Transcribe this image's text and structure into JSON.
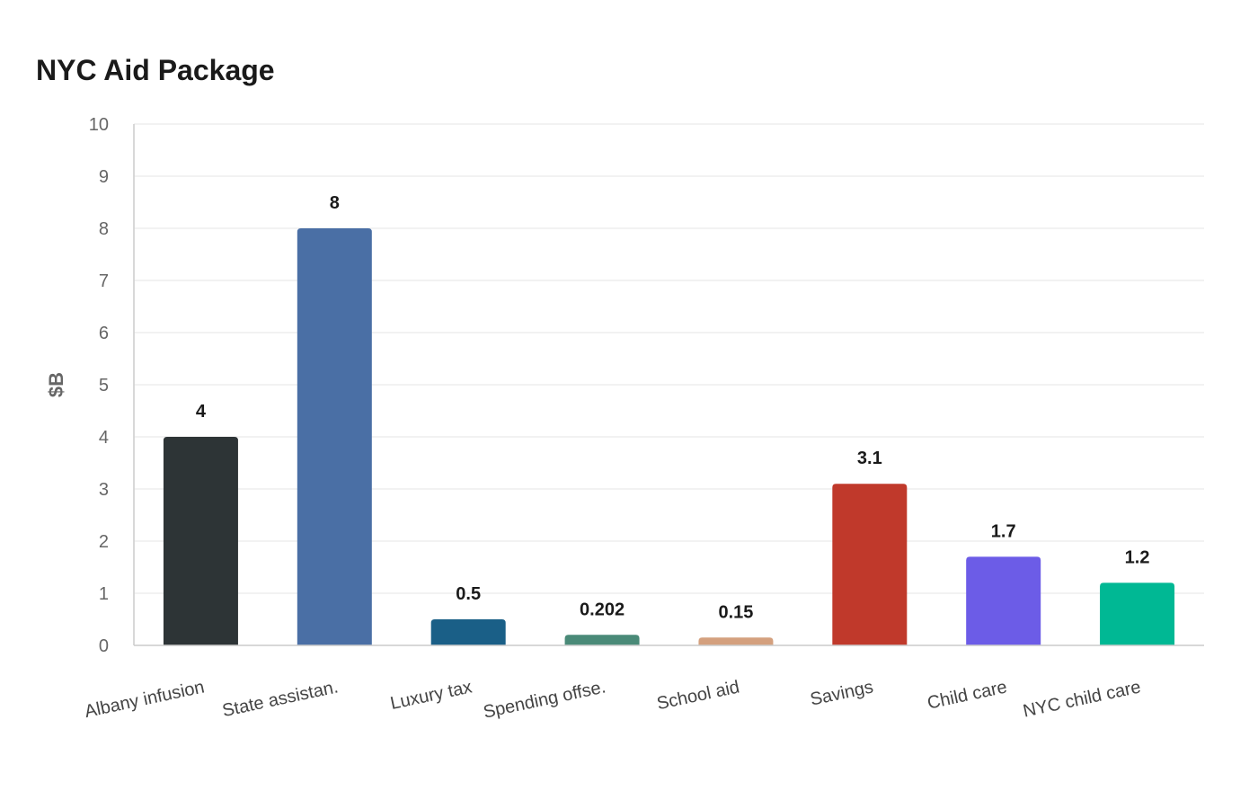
{
  "chart_data": {
    "type": "bar",
    "title": "NYC Aid Package",
    "xlabel": "",
    "ylabel": "$B",
    "ylim": [
      0,
      10
    ],
    "yticks": [
      0,
      1,
      2,
      3,
      4,
      5,
      6,
      7,
      8,
      9,
      10
    ],
    "grid": true,
    "categories": [
      "Albany infusion",
      "State assistan.",
      "Luxury tax",
      "Spending offse.",
      "School aid",
      "Savings",
      "Child care",
      "NYC child care"
    ],
    "values": [
      4,
      8,
      0.5,
      0.202,
      0.15,
      3.1,
      1.7,
      1.2
    ],
    "value_labels": [
      "4",
      "8",
      "0.5",
      "0.202",
      "0.15",
      "3.1",
      "1.7",
      "1.2"
    ],
    "colors": [
      "#2d3436",
      "#4a6fa5",
      "#1a5f87",
      "#4a8a78",
      "#d4a07e",
      "#c0392b",
      "#6c5ce7",
      "#00b894"
    ]
  }
}
